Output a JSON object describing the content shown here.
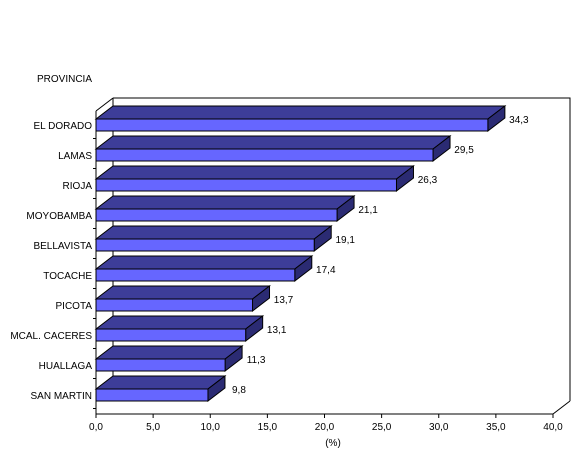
{
  "chart_data": {
    "type": "bar",
    "orientation": "horizontal",
    "three_d": true,
    "category_axis_title": "PROVINCIA",
    "xlabel": "(%)",
    "categories": [
      "EL DORADO",
      "LAMAS",
      "RIOJA",
      "MOYOBAMBA",
      "BELLAVISTA",
      "TOCACHE",
      "PICOTA",
      "MCAL. CACERES",
      "HUALLAGA",
      "SAN MARTIN"
    ],
    "values": [
      34.3,
      29.5,
      26.3,
      21.1,
      19.1,
      17.4,
      13.7,
      13.1,
      11.3,
      9.8
    ],
    "value_labels": [
      "34,3",
      "29,5",
      "26,3",
      "21,1",
      "19,1",
      "17,4",
      "13,7",
      "13,1",
      "11,3",
      "9,8"
    ],
    "xlim": [
      0,
      40
    ],
    "xticks": [
      "0,0",
      "5,0",
      "10,0",
      "15,0",
      "20,0",
      "25,0",
      "30,0",
      "35,0",
      "40,0"
    ],
    "grid": false,
    "legend": "none",
    "colors": {
      "bar_front": "#6666ff",
      "bar_top": "#3d3d99",
      "bar_side": "#2b2b73",
      "outline": "#000000",
      "background": "#ffffff"
    }
  }
}
